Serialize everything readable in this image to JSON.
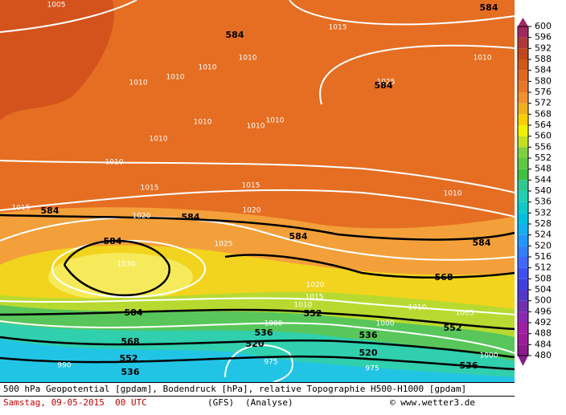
{
  "map": {
    "pressure_labels": [
      "1005",
      "1015",
      "1010",
      "1010",
      "1010",
      "1010",
      "1010",
      "1025",
      "1010",
      "1010",
      "1010",
      "1010",
      "1010",
      "1015",
      "1015",
      "1010",
      "1015",
      "1020",
      "1020",
      "1025",
      "1030",
      "1020",
      "1015",
      "1010",
      "1010",
      "1005",
      "1000",
      "1000",
      "1000",
      "990",
      "975",
      "975"
    ],
    "geopotential_labels": [
      "584",
      "584",
      "584",
      "584",
      "584",
      "584",
      "584",
      "584",
      "568",
      "584",
      "552",
      "552",
      "568",
      "536",
      "536",
      "520",
      "520",
      "552",
      "536",
      "536"
    ]
  },
  "colorbar": {
    "ticks": [
      480,
      484,
      488,
      492,
      496,
      500,
      504,
      508,
      512,
      516,
      520,
      524,
      528,
      532,
      536,
      540,
      544,
      548,
      552,
      556,
      560,
      564,
      568,
      572,
      576,
      580,
      584,
      588,
      592,
      596,
      600
    ],
    "colors": [
      "#8b1a8b",
      "#9a1c9a",
      "#a020a0",
      "#8a28b0",
      "#7030b0",
      "#5038c8",
      "#4040e0",
      "#4050f0",
      "#4068ff",
      "#3080ff",
      "#2098ff",
      "#10b0f0",
      "#00c0e0",
      "#10c8c8",
      "#20d0b0",
      "#30c890",
      "#40c040",
      "#60c840",
      "#80d040",
      "#c0e020",
      "#f0f000",
      "#f8d000",
      "#f0b020",
      "#f09030",
      "#e87828",
      "#e06820",
      "#d05818",
      "#c04818",
      "#b03838",
      "#a02860"
    ]
  },
  "footer": {
    "description": "500 hPa Geopotential [gpdam], Bodendruck [hPa], relative Topographie H500-H1000 [gpdam]",
    "date": "Samstag, 09-05-2015  00 UTC",
    "model": "(GFS)",
    "run": "(Analyse)",
    "credit": "© www.wetter3.de"
  }
}
